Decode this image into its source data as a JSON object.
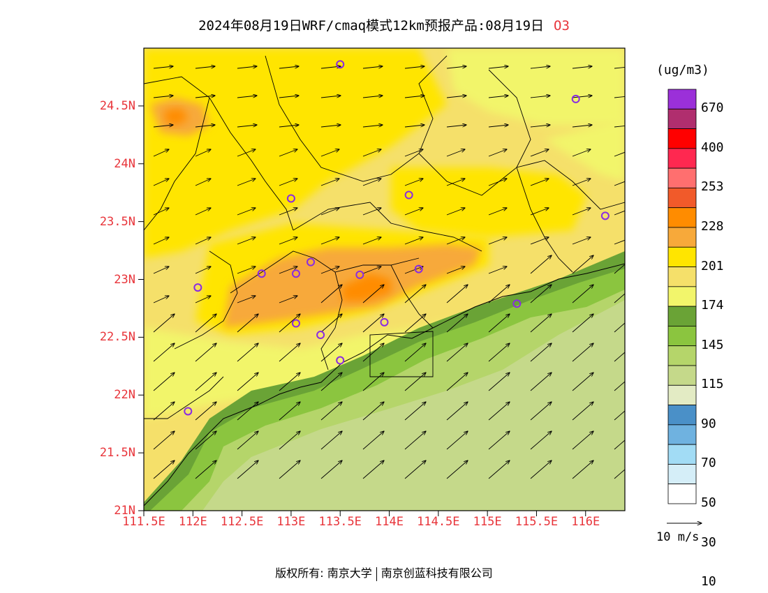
{
  "title": {
    "main": "2024年08月19日WRF/cmaq模式12km预报产品:08月19日",
    "species": "O3"
  },
  "map": {
    "lon_range": [
      111.5,
      116.4
    ],
    "lat_range": [
      21.0,
      25.0
    ],
    "lat_labels": [
      "21N",
      "21.5N",
      "22N",
      "22.5N",
      "23N",
      "23.5N",
      "24N",
      "24.5N"
    ],
    "lon_labels": [
      "111.5E",
      "112E",
      "112.5E",
      "113E",
      "113.5E",
      "114E",
      "114.5E",
      "115E",
      "115.5E",
      "116E"
    ],
    "stations": [
      {
        "lon": 113.5,
        "lat": 24.86
      },
      {
        "lon": 115.9,
        "lat": 24.56
      },
      {
        "lon": 113.0,
        "lat": 23.7
      },
      {
        "lon": 114.2,
        "lat": 23.73
      },
      {
        "lon": 116.2,
        "lat": 23.55
      },
      {
        "lon": 113.2,
        "lat": 23.15
      },
      {
        "lon": 112.7,
        "lat": 23.05
      },
      {
        "lon": 113.05,
        "lat": 23.05
      },
      {
        "lon": 113.7,
        "lat": 23.04
      },
      {
        "lon": 114.3,
        "lat": 23.09
      },
      {
        "lon": 112.05,
        "lat": 22.93
      },
      {
        "lon": 113.05,
        "lat": 22.62
      },
      {
        "lon": 113.3,
        "lat": 22.52
      },
      {
        "lon": 113.95,
        "lat": 22.63
      },
      {
        "lon": 113.5,
        "lat": 22.3
      },
      {
        "lon": 115.3,
        "lat": 22.79
      },
      {
        "lon": 111.95,
        "lat": 21.86
      }
    ]
  },
  "colorbar": {
    "unit": "(ug/m3)",
    "labels": [
      "670",
      "400",
      "253",
      "228",
      "201",
      "174",
      "145",
      "115",
      "90",
      "70",
      "50",
      "30",
      "10"
    ],
    "colors": [
      "#9b30d9",
      "#b02e6e",
      "#ff0000",
      "#ff2850",
      "#ff6f6f",
      "#f15a2a",
      "#ff8c00",
      "#f7a93a",
      "#ffe500",
      "#f5e06a",
      "#f2f56b",
      "#6aa336",
      "#8bc53f",
      "#b5d56a",
      "#c5d98a",
      "#e3ebc4",
      "#4a90c8",
      "#6fb2e0",
      "#a2dcf5",
      "#d5eef8",
      "#ffffff"
    ]
  },
  "reference_vector": "10 m/s",
  "footer": {
    "prefix": "版权所有:",
    "org1": "南京大学",
    "org2": "南京创蓝科技有限公司"
  }
}
